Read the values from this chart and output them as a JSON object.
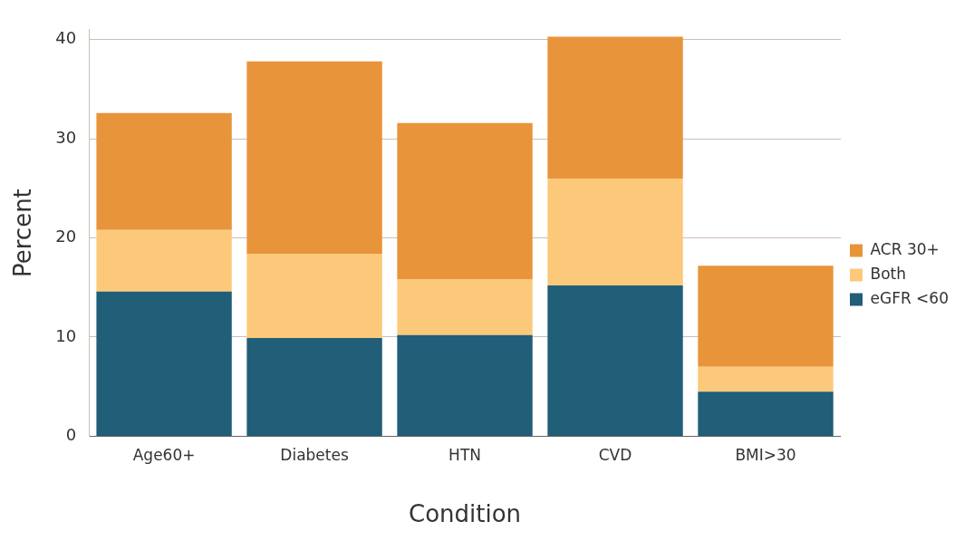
{
  "chart_data": {
    "type": "bar",
    "stacked": true,
    "xlabel": "Condition",
    "ylabel": "Percent",
    "categories": [
      "Age60+",
      "Diabetes",
      "HTN",
      "CVD",
      "BMI>30"
    ],
    "series": [
      {
        "name": "eGFR <60",
        "color": "#215e78",
        "values": [
          14.6,
          9.9,
          10.2,
          15.2,
          4.5
        ]
      },
      {
        "name": "Both",
        "color": "#fcc97a",
        "values": [
          6.2,
          8.5,
          5.6,
          10.8,
          2.5
        ]
      },
      {
        "name": "ACR 30+",
        "color": "#e8943a",
        "values": [
          11.8,
          19.4,
          15.8,
          14.3,
          10.2
        ]
      }
    ],
    "ylim": [
      0,
      41
    ],
    "yticks": [
      0,
      10,
      20,
      30,
      40
    ],
    "grid": "y",
    "legend": "right"
  }
}
